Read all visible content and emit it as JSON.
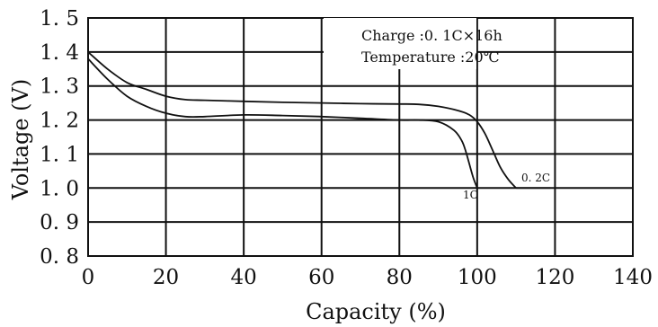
{
  "chart_data": {
    "type": "line",
    "xlabel": "Capacity (%)",
    "ylabel": "Voltage (V)",
    "xlim": [
      0,
      140
    ],
    "ylim": [
      0.8,
      1.5
    ],
    "x_ticks": [
      0,
      20,
      40,
      60,
      80,
      100,
      120,
      140
    ],
    "y_ticks": [
      0.8,
      0.9,
      1.0,
      1.1,
      1.2,
      1.3,
      1.4,
      1.5
    ],
    "x_tick_labels": [
      "0",
      "20",
      "40",
      "60",
      "80",
      "100",
      "120",
      "140"
    ],
    "y_tick_labels": [
      "0. 8",
      "0. 9",
      "1. 0",
      "1. 1",
      "1. 2",
      "1. 3",
      "1. 4",
      "1. 5"
    ],
    "grid": true,
    "annotations": [
      "Charge :0. 1C×16h",
      "Temperature :20℃"
    ],
    "series": [
      {
        "name": "0. 2C",
        "x": [
          0,
          5,
          10,
          15,
          20,
          25,
          30,
          40,
          50,
          60,
          70,
          80,
          85,
          90,
          95,
          98,
          100,
          102,
          104,
          106,
          108,
          110
        ],
        "y": [
          1.4,
          1.35,
          1.31,
          1.29,
          1.27,
          1.26,
          1.258,
          1.255,
          1.252,
          1.25,
          1.248,
          1.247,
          1.246,
          1.24,
          1.228,
          1.215,
          1.195,
          1.16,
          1.11,
          1.06,
          1.025,
          1.0
        ]
      },
      {
        "name": "1C",
        "x": [
          0,
          5,
          10,
          15,
          20,
          25,
          30,
          40,
          50,
          60,
          70,
          80,
          85,
          90,
          94,
          96,
          97,
          98,
          99,
          100
        ],
        "y": [
          1.38,
          1.32,
          1.27,
          1.24,
          1.22,
          1.21,
          1.21,
          1.215,
          1.213,
          1.21,
          1.205,
          1.2,
          1.2,
          1.195,
          1.17,
          1.14,
          1.11,
          1.07,
          1.03,
          1.0
        ]
      }
    ]
  }
}
